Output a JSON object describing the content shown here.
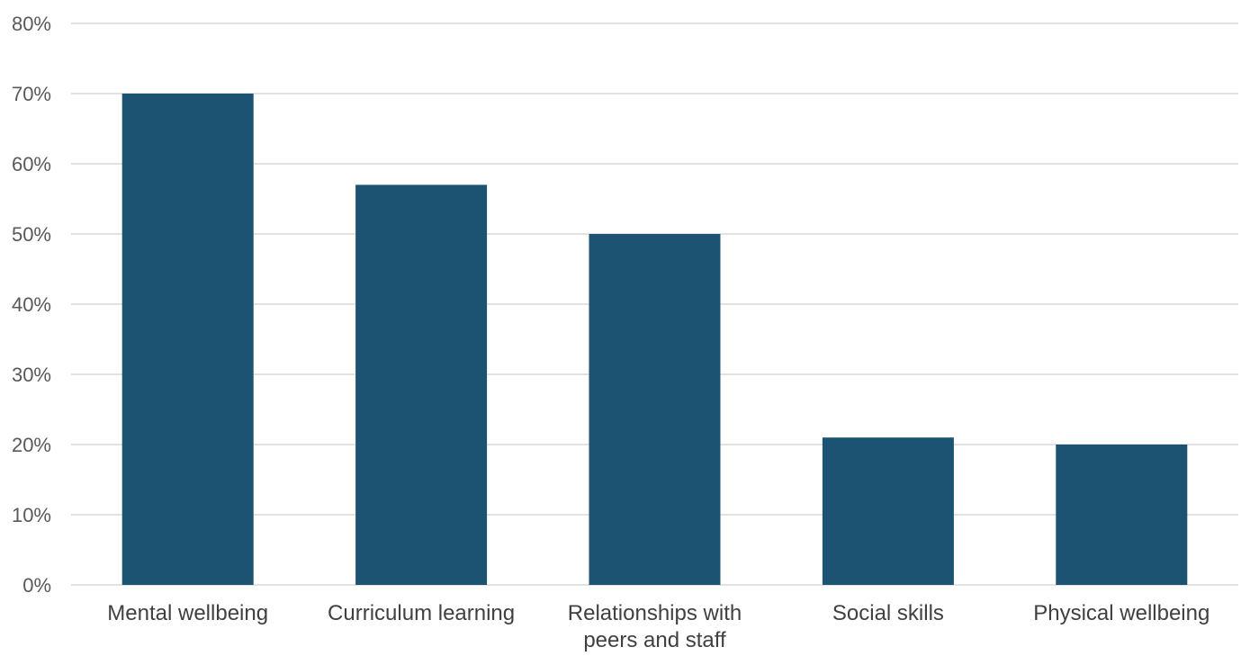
{
  "chart_data": {
    "type": "bar",
    "categories": [
      "Mental wellbeing",
      "Curriculum learning",
      "Relationships with peers and staff",
      "Social skills",
      "Physical wellbeing"
    ],
    "category_lines": [
      [
        "Mental wellbeing"
      ],
      [
        "Curriculum learning"
      ],
      [
        "Relationships with",
        "peers and staff"
      ],
      [
        "Social skills"
      ],
      [
        "Physical wellbeing"
      ]
    ],
    "values": [
      70,
      57,
      50,
      21,
      20
    ],
    "ylim": [
      0,
      80
    ],
    "yticks": [
      0,
      10,
      20,
      30,
      40,
      50,
      60,
      70,
      80
    ],
    "ytick_labels": [
      "0%",
      "10%",
      "20%",
      "30%",
      "40%",
      "50%",
      "60%",
      "70%",
      "80%"
    ],
    "grid": true,
    "legend": "none",
    "bar_color": "#1d5372"
  }
}
